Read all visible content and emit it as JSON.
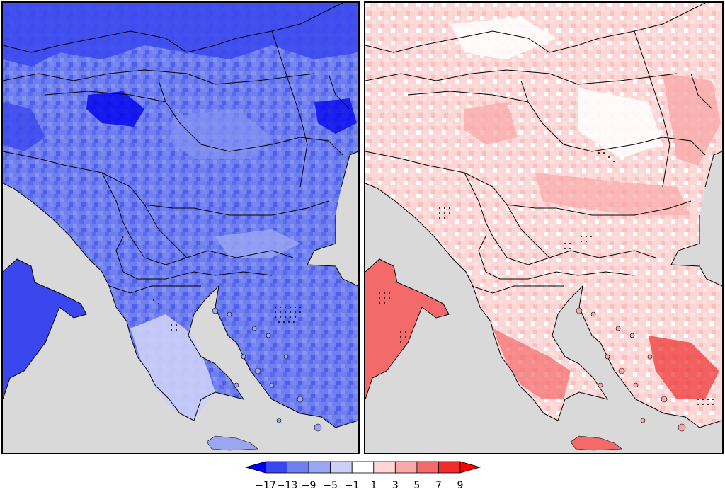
{
  "colorbar": {
    "labels": [
      "−17",
      "−13",
      "−9",
      "−5",
      "−1",
      "1",
      "3",
      "5",
      "7",
      "9"
    ],
    "colors": [
      "#0000ee",
      "#3a47ee",
      "#6f7ff0",
      "#9aa6f2",
      "#ccd0f8",
      "#ffffff",
      "#fdd6d6",
      "#f9a8a8",
      "#f46a6a",
      "#ee2c2c",
      "#ff0000"
    ]
  },
  "colors": {
    "land_left": "#6f7ff0",
    "land_right": "#fdd6d6",
    "sea": "#d9d9d9",
    "border": "#000000"
  }
}
